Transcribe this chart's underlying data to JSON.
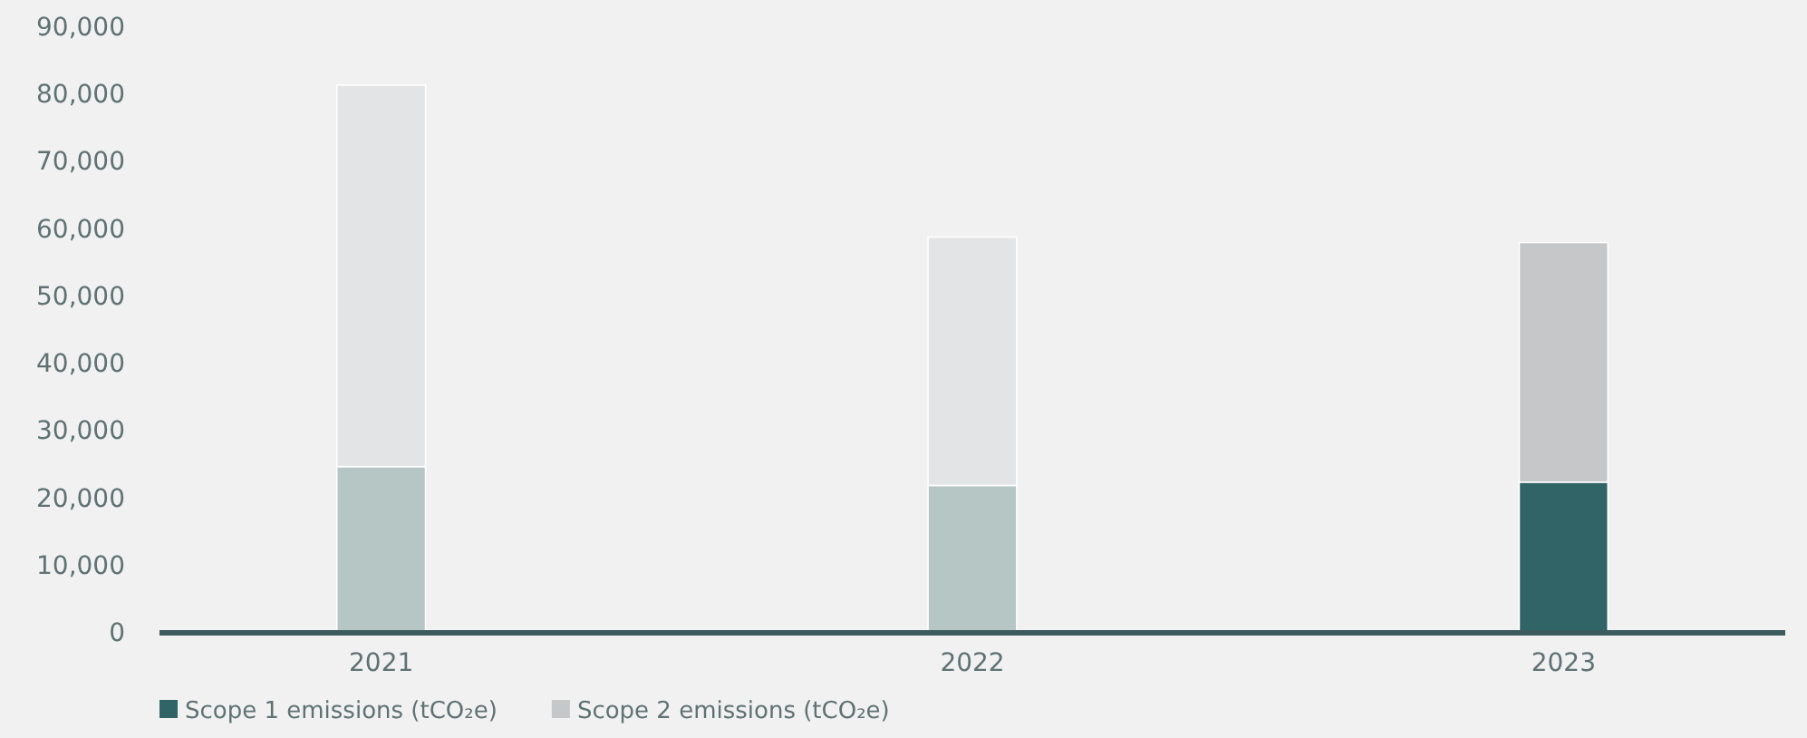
{
  "chart_data": {
    "type": "bar",
    "stacked": true,
    "categories": [
      "2021",
      "2022",
      "2023"
    ],
    "series": [
      {
        "name": "Scope 1 emissions (tCO₂e)",
        "color": "#306466",
        "colors": [
          "#b5c6c5",
          "#b5c6c5",
          "#306466"
        ],
        "values": [
          24700,
          21900,
          22400
        ]
      },
      {
        "name": "Scope 2 emissions (tCO₂e)",
        "color": "#c6c7c9",
        "colors": [
          "#e3e4e5",
          "#e3e4e5",
          "#c6c7c9"
        ],
        "values": [
          56700,
          36900,
          35600
        ]
      }
    ],
    "ylim": [
      0,
      90000
    ],
    "yticks": [
      {
        "value": 0,
        "label": "0"
      },
      {
        "value": 10000,
        "label": "10,000"
      },
      {
        "value": 20000,
        "label": "20,000"
      },
      {
        "value": 30000,
        "label": "30,000"
      },
      {
        "value": 40000,
        "label": "40,000"
      },
      {
        "value": 50000,
        "label": "50,000"
      },
      {
        "value": 60000,
        "label": "60,000"
      },
      {
        "value": 70000,
        "label": "70,000"
      },
      {
        "value": 80000,
        "label": "80,000"
      },
      {
        "value": 90000,
        "label": "90,000"
      }
    ],
    "grid": false,
    "legend": "bottom left"
  }
}
